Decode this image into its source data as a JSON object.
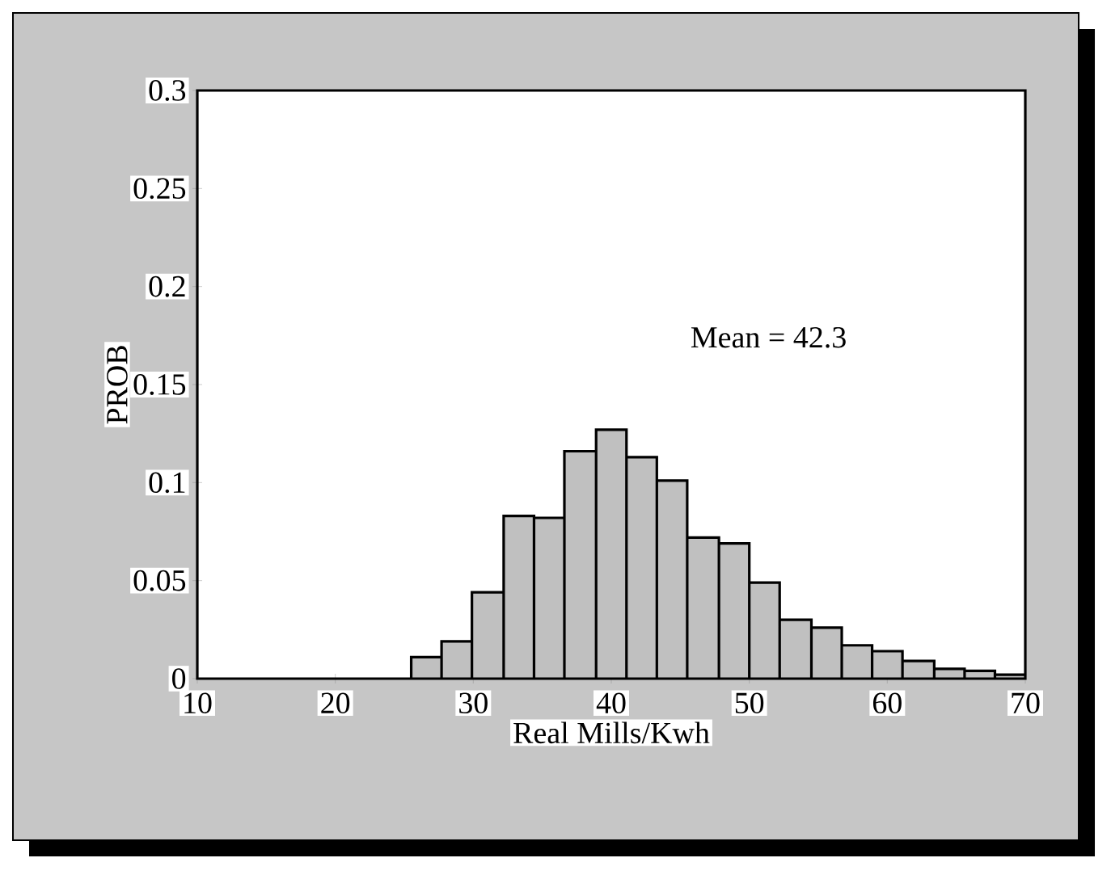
{
  "chart_data": {
    "type": "histogram",
    "xlabel": "Real Mills/Kwh",
    "ylabel": "PROB",
    "annotations": [
      "Mean = 42.3"
    ],
    "bins": [
      25.5,
      27.7,
      29.9,
      32.2,
      34.4,
      36.6,
      38.9,
      41.1,
      43.3,
      45.5,
      47.8,
      50,
      52.2,
      54.5,
      56.7,
      58.9,
      61.1,
      63.4,
      65.6,
      67.8,
      70
    ],
    "values": [
      0.011,
      0.019,
      0.044,
      0.083,
      0.082,
      0.116,
      0.127,
      0.113,
      0.101,
      0.072,
      0.069,
      0.049,
      0.03,
      0.026,
      0.017,
      0.014,
      0.009,
      0.005,
      0.004,
      0.002
    ],
    "color": "#c0c0c0",
    "xlim": [
      10,
      70
    ],
    "xticks": [
      10,
      20,
      30,
      40,
      50,
      60,
      70
    ],
    "ylim": [
      0,
      0.3
    ],
    "yticks": [
      0,
      0.05,
      0.1,
      0.15,
      0.2,
      0.25,
      0.3
    ],
    "grid": false
  }
}
